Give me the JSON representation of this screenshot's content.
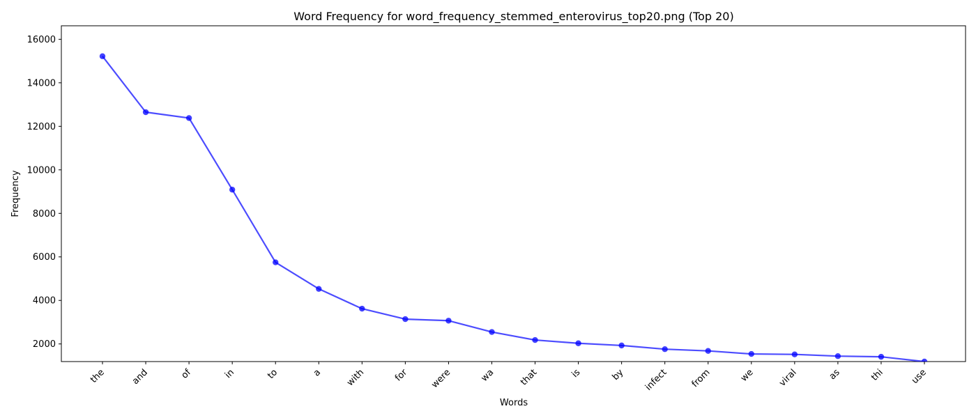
{
  "chart_data": {
    "type": "line",
    "title": "Word Frequency for word_frequency_stemmed_enterovirus_top20.png (Top 20)",
    "xlabel": "Words",
    "ylabel": "Frequency",
    "categories": [
      "the",
      "and",
      "of",
      "in",
      "to",
      "a",
      "with",
      "for",
      "were",
      "wa",
      "that",
      "is",
      "by",
      "infect",
      "from",
      "we",
      "viral",
      "as",
      "thi",
      "use"
    ],
    "series": [
      {
        "values": [
          15220,
          12650,
          12380,
          9090,
          5750,
          4530,
          3620,
          3140,
          3070,
          2550,
          2180,
          2030,
          1930,
          1760,
          1680,
          1540,
          1520,
          1440,
          1410,
          1190
        ]
      }
    ],
    "ylim": [
      1190,
      16620
    ],
    "yticks": [
      2000,
      4000,
      6000,
      8000,
      10000,
      12000,
      14000,
      16000
    ],
    "grid": false,
    "legend": "none",
    "colors": {
      "line": "#0000ff",
      "marker": "#0000ff"
    }
  }
}
